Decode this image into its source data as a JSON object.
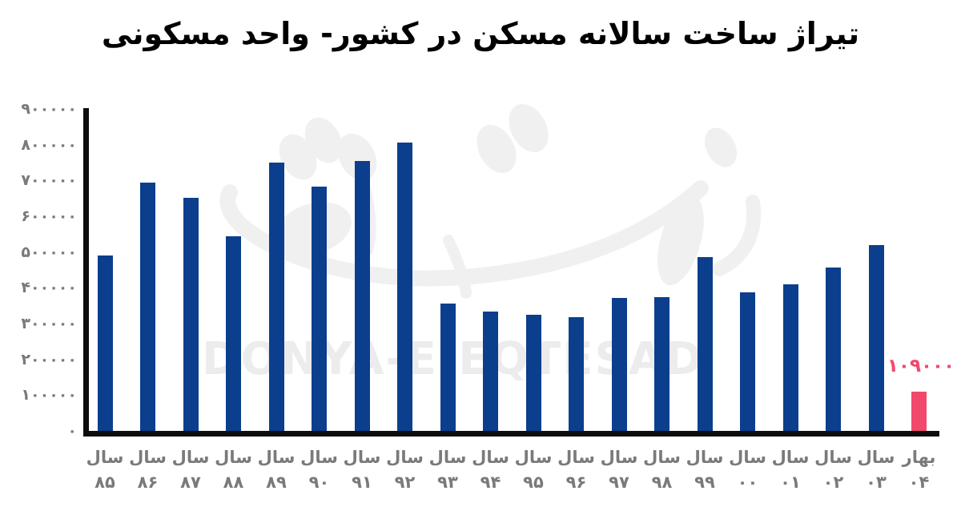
{
  "title": "تیراژ ساخت سالانه مسکن در کشور- واحد مسکونی",
  "watermark": {
    "latin": "DONYA-E-EQTESAD",
    "calligraphy_name": "donya-e-eqtesad-logo"
  },
  "colors": {
    "bar": "#0B3E8D",
    "highlight": "#F2486C",
    "axis": "#0d0d0d",
    "label_gray": "#7a7a7a",
    "watermark": "#F0F0F0",
    "watermark_text": "#ECECEC"
  },
  "chart_data": {
    "type": "bar",
    "title": "تیراژ ساخت سالانه مسکن در کشور- واحد مسکونی",
    "xlabel": "",
    "ylabel": "",
    "ylim": [
      0,
      900000
    ],
    "grid": false,
    "legend": false,
    "ytick_values": [
      900000,
      800000,
      700000,
      600000,
      500000,
      400000,
      300000,
      200000,
      100000,
      0
    ],
    "ytick_labels": [
      "۹۰۰۰۰۰",
      "۸۰۰۰۰۰",
      "۷۰۰۰۰۰",
      "۶۰۰۰۰۰",
      "۵۰۰۰۰۰",
      "۴۰۰۰۰۰",
      "۳۰۰۰۰۰",
      "۲۰۰۰۰۰",
      "۱۰۰۰۰۰",
      "۰"
    ],
    "categories": [
      {
        "line1": "سال",
        "line2": "۸۵"
      },
      {
        "line1": "سال",
        "line2": "۸۶"
      },
      {
        "line1": "سال",
        "line2": "۸۷"
      },
      {
        "line1": "سال",
        "line2": "۸۸"
      },
      {
        "line1": "سال",
        "line2": "۸۹"
      },
      {
        "line1": "سال",
        "line2": "۹۰"
      },
      {
        "line1": "سال",
        "line2": "۹۱"
      },
      {
        "line1": "سال",
        "line2": "۹۲"
      },
      {
        "line1": "سال",
        "line2": "۹۳"
      },
      {
        "line1": "سال",
        "line2": "۹۴"
      },
      {
        "line1": "سال",
        "line2": "۹۵"
      },
      {
        "line1": "سال",
        "line2": "۹۶"
      },
      {
        "line1": "سال",
        "line2": "۹۷"
      },
      {
        "line1": "سال",
        "line2": "۹۸"
      },
      {
        "line1": "سال",
        "line2": "۹۹"
      },
      {
        "line1": "سال",
        "line2": "۰۰"
      },
      {
        "line1": "سال",
        "line2": "۰۱"
      },
      {
        "line1": "سال",
        "line2": "۰۲"
      },
      {
        "line1": "سال",
        "line2": "۰۳"
      },
      {
        "line1": "بهار",
        "line2": "۰۴"
      }
    ],
    "values": [
      490000,
      695000,
      652000,
      545000,
      750000,
      683000,
      755000,
      805000,
      357000,
      333000,
      324000,
      318000,
      371000,
      375000,
      485000,
      387000,
      410000,
      457000,
      520000,
      109000
    ],
    "highlight_index": 19,
    "highlight_value": 109000,
    "highlight_value_label": "۱۰۹۰۰۰"
  }
}
